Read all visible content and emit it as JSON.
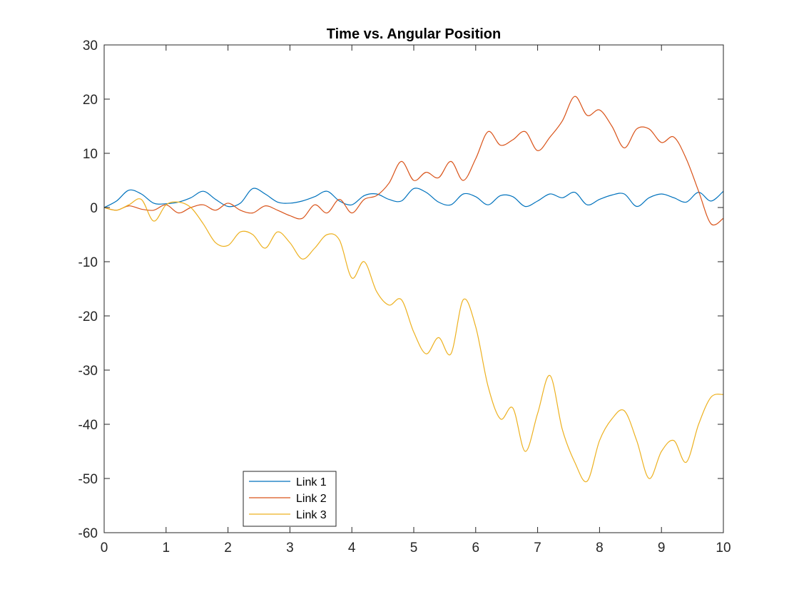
{
  "chart_data": {
    "type": "line",
    "title": "Time vs. Angular Position",
    "xlabel": "",
    "ylabel": "",
    "xlim": [
      0,
      10
    ],
    "ylim": [
      -60,
      30
    ],
    "xticks": [
      0,
      1,
      2,
      3,
      4,
      5,
      6,
      7,
      8,
      9,
      10
    ],
    "yticks": [
      30,
      20,
      10,
      0,
      -10,
      -20,
      -30,
      -40,
      -50,
      -60
    ],
    "grid": false,
    "legend_position": "bottom-left",
    "series": [
      {
        "name": "Link 1",
        "color": "#0072BD",
        "points": [
          [
            0,
            0
          ],
          [
            0.2,
            1.2
          ],
          [
            0.4,
            3.2
          ],
          [
            0.6,
            2.5
          ],
          [
            0.8,
            0.8
          ],
          [
            1.0,
            0.7
          ],
          [
            1.2,
            1.0
          ],
          [
            1.4,
            1.8
          ],
          [
            1.6,
            3.0
          ],
          [
            1.8,
            1.5
          ],
          [
            2.0,
            0.2
          ],
          [
            2.2,
            0.8
          ],
          [
            2.4,
            3.5
          ],
          [
            2.6,
            2.5
          ],
          [
            2.8,
            1.0
          ],
          [
            3.0,
            0.8
          ],
          [
            3.2,
            1.2
          ],
          [
            3.4,
            2.0
          ],
          [
            3.6,
            3.0
          ],
          [
            3.8,
            1.2
          ],
          [
            4.0,
            0.5
          ],
          [
            4.2,
            2.2
          ],
          [
            4.4,
            2.5
          ],
          [
            4.6,
            1.5
          ],
          [
            4.8,
            1.2
          ],
          [
            5.0,
            3.5
          ],
          [
            5.2,
            2.8
          ],
          [
            5.4,
            1.0
          ],
          [
            5.6,
            0.5
          ],
          [
            5.8,
            2.5
          ],
          [
            6.0,
            2.0
          ],
          [
            6.2,
            0.5
          ],
          [
            6.4,
            2.2
          ],
          [
            6.6,
            2.0
          ],
          [
            6.8,
            0.2
          ],
          [
            7.0,
            1.2
          ],
          [
            7.2,
            2.5
          ],
          [
            7.4,
            1.8
          ],
          [
            7.6,
            2.8
          ],
          [
            7.8,
            0.5
          ],
          [
            8.0,
            1.5
          ],
          [
            8.2,
            2.3
          ],
          [
            8.4,
            2.5
          ],
          [
            8.6,
            0.2
          ],
          [
            8.8,
            1.8
          ],
          [
            9.0,
            2.5
          ],
          [
            9.2,
            1.8
          ],
          [
            9.4,
            1.0
          ],
          [
            9.6,
            2.8
          ],
          [
            9.8,
            1.2
          ],
          [
            10.0,
            3.0
          ]
        ]
      },
      {
        "name": "Link 2",
        "color": "#D95319",
        "points": [
          [
            0,
            0
          ],
          [
            0.2,
            -0.5
          ],
          [
            0.4,
            0.3
          ],
          [
            0.6,
            -0.3
          ],
          [
            0.8,
            -0.5
          ],
          [
            1.0,
            0.5
          ],
          [
            1.2,
            -1.0
          ],
          [
            1.4,
            0.0
          ],
          [
            1.6,
            0.5
          ],
          [
            1.8,
            -0.5
          ],
          [
            2.0,
            0.8
          ],
          [
            2.2,
            -0.5
          ],
          [
            2.4,
            -1.0
          ],
          [
            2.6,
            0.3
          ],
          [
            2.8,
            -0.5
          ],
          [
            3.0,
            -1.5
          ],
          [
            3.2,
            -2.0
          ],
          [
            3.4,
            0.5
          ],
          [
            3.6,
            -1.0
          ],
          [
            3.8,
            1.5
          ],
          [
            4.0,
            -1.0
          ],
          [
            4.2,
            1.5
          ],
          [
            4.4,
            2.2
          ],
          [
            4.6,
            4.5
          ],
          [
            4.8,
            8.5
          ],
          [
            5.0,
            5.0
          ],
          [
            5.2,
            6.5
          ],
          [
            5.4,
            5.5
          ],
          [
            5.6,
            8.5
          ],
          [
            5.8,
            5.0
          ],
          [
            6.0,
            9.0
          ],
          [
            6.2,
            14.0
          ],
          [
            6.4,
            11.5
          ],
          [
            6.6,
            12.5
          ],
          [
            6.8,
            14.0
          ],
          [
            7.0,
            10.5
          ],
          [
            7.2,
            13.0
          ],
          [
            7.4,
            16.0
          ],
          [
            7.6,
            20.5
          ],
          [
            7.8,
            17.0
          ],
          [
            8.0,
            18.0
          ],
          [
            8.2,
            15.0
          ],
          [
            8.4,
            11.0
          ],
          [
            8.6,
            14.5
          ],
          [
            8.8,
            14.5
          ],
          [
            9.0,
            12.0
          ],
          [
            9.2,
            13.0
          ],
          [
            9.4,
            9.0
          ],
          [
            9.6,
            3.0
          ],
          [
            9.8,
            -3.0
          ],
          [
            10.0,
            -2.0
          ]
        ]
      },
      {
        "name": "Link 3",
        "color": "#EDB120",
        "points": [
          [
            0,
            0
          ],
          [
            0.2,
            -0.5
          ],
          [
            0.4,
            0.5
          ],
          [
            0.6,
            1.5
          ],
          [
            0.8,
            -2.5
          ],
          [
            1.0,
            0.5
          ],
          [
            1.2,
            1.0
          ],
          [
            1.4,
            0.0
          ],
          [
            1.6,
            -3.0
          ],
          [
            1.8,
            -6.5
          ],
          [
            2.0,
            -7.0
          ],
          [
            2.2,
            -4.5
          ],
          [
            2.4,
            -5.0
          ],
          [
            2.6,
            -7.5
          ],
          [
            2.8,
            -4.5
          ],
          [
            3.0,
            -6.5
          ],
          [
            3.2,
            -9.5
          ],
          [
            3.4,
            -7.5
          ],
          [
            3.6,
            -5.0
          ],
          [
            3.8,
            -6.0
          ],
          [
            4.0,
            -13.0
          ],
          [
            4.2,
            -10.0
          ],
          [
            4.4,
            -15.5
          ],
          [
            4.6,
            -18.0
          ],
          [
            4.8,
            -17.0
          ],
          [
            5.0,
            -23.0
          ],
          [
            5.2,
            -27.0
          ],
          [
            5.4,
            -24.0
          ],
          [
            5.6,
            -27.0
          ],
          [
            5.8,
            -17.0
          ],
          [
            6.0,
            -22.0
          ],
          [
            6.2,
            -33.0
          ],
          [
            6.4,
            -39.0
          ],
          [
            6.6,
            -37.0
          ],
          [
            6.8,
            -45.0
          ],
          [
            7.0,
            -38.0
          ],
          [
            7.2,
            -31.0
          ],
          [
            7.4,
            -41.0
          ],
          [
            7.6,
            -47.0
          ],
          [
            7.8,
            -50.5
          ],
          [
            8.0,
            -43.0
          ],
          [
            8.2,
            -39.0
          ],
          [
            8.4,
            -37.5
          ],
          [
            8.6,
            -43.0
          ],
          [
            8.8,
            -50.0
          ],
          [
            9.0,
            -45.0
          ],
          [
            9.2,
            -43.0
          ],
          [
            9.4,
            -47.0
          ],
          [
            9.6,
            -40.0
          ],
          [
            9.8,
            -35.0
          ],
          [
            10.0,
            -34.5
          ]
        ]
      }
    ]
  }
}
